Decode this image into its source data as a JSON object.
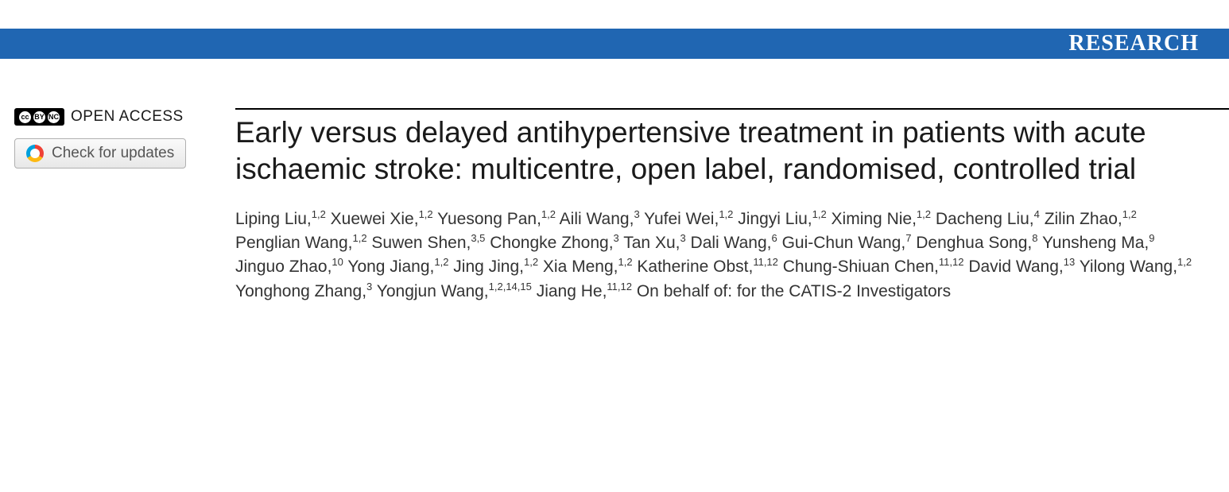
{
  "banner": {
    "label": "RESEARCH",
    "background_color": "#2066b2",
    "text_color": "#ffffff"
  },
  "sidebar": {
    "open_access": {
      "label": "OPEN ACCESS",
      "cc_text": "cc",
      "by_text": "BY",
      "nc_text": "NC"
    },
    "check_updates": {
      "label": "Check for updates"
    }
  },
  "article": {
    "title": "Early versus delayed antihypertensive treatment in patients with acute ischaemic stroke: multicentre, open label, randomised, controlled trial",
    "authors": [
      {
        "name": "Liping Liu",
        "affil": "1,2"
      },
      {
        "name": "Xuewei Xie",
        "affil": "1,2"
      },
      {
        "name": "Yuesong Pan",
        "affil": "1,2"
      },
      {
        "name": "Aili Wang",
        "affil": "3"
      },
      {
        "name": "Yufei Wei",
        "affil": "1,2"
      },
      {
        "name": "Jingyi Liu",
        "affil": "1,2"
      },
      {
        "name": "Ximing Nie",
        "affil": "1,2"
      },
      {
        "name": "Dacheng Liu",
        "affil": "4"
      },
      {
        "name": "Zilin Zhao",
        "affil": "1,2"
      },
      {
        "name": "Penglian Wang",
        "affil": "1,2"
      },
      {
        "name": "Suwen Shen",
        "affil": "3,5"
      },
      {
        "name": "Chongke Zhong",
        "affil": "3"
      },
      {
        "name": "Tan Xu",
        "affil": "3"
      },
      {
        "name": "Dali Wang",
        "affil": "6"
      },
      {
        "name": "Gui-Chun Wang",
        "affil": "7"
      },
      {
        "name": "Denghua Song",
        "affil": "8"
      },
      {
        "name": "Yunsheng Ma",
        "affil": "9"
      },
      {
        "name": "Jinguo Zhao",
        "affil": "10"
      },
      {
        "name": "Yong Jiang",
        "affil": "1,2"
      },
      {
        "name": "Jing Jing",
        "affil": "1,2"
      },
      {
        "name": "Xia Meng",
        "affil": "1,2"
      },
      {
        "name": "Katherine Obst",
        "affil": "11,12"
      },
      {
        "name": "Chung-Shiuan Chen",
        "affil": "11,12"
      },
      {
        "name": "David Wang",
        "affil": "13"
      },
      {
        "name": "Yilong Wang",
        "affil": "1,2"
      },
      {
        "name": "Yonghong Zhang",
        "affil": "3"
      },
      {
        "name": "Yongjun Wang",
        "affil": "1,2,14,15"
      },
      {
        "name": "Jiang He",
        "affil": "11,12"
      }
    ],
    "group_prefix": "On behalf of: for the ",
    "group_name": "CATIS-2 Investigators"
  },
  "styling": {
    "body_background": "#ffffff",
    "title_fontsize": 37,
    "title_color": "#1a1a1a",
    "author_fontsize": 21,
    "author_color": "#333333",
    "affil_fontsize": 13,
    "banner_height": 38,
    "banner_fontsize": 28,
    "divider_color": "#000000",
    "divider_width": 2
  }
}
